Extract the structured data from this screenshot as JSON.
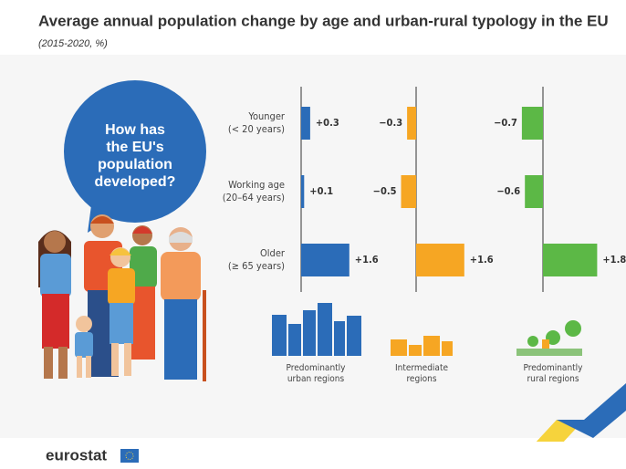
{
  "chart_data": {
    "type": "bar",
    "orientation": "horizontal",
    "title": "Average annual population change by age and urban-rural typology in the EU",
    "subtitle": "(2015-2020, %)",
    "annotation": [
      "How has",
      "the EU's",
      "population",
      "developed?"
    ],
    "logo": "eurostat",
    "categories": [
      [
        "Younger",
        "(< 20 years)"
      ],
      [
        "Working age",
        "(20–64 years)"
      ],
      [
        "Older",
        "(≥ 65 years)"
      ]
    ],
    "series": [
      {
        "name": [
          "Predominantly",
          "urban regions"
        ],
        "color": "#2b6cb8",
        "values": [
          0.3,
          0.1,
          1.6
        ],
        "value_labels": [
          "+0.3",
          "+0.1",
          "+1.6"
        ]
      },
      {
        "name": [
          "Intermediate",
          "regions"
        ],
        "color": "#f6a623",
        "values": [
          -0.3,
          -0.5,
          1.6
        ],
        "value_labels": [
          "−0.3",
          "−0.5",
          "+1.6"
        ]
      },
      {
        "name": [
          "Predominantly",
          "rural regions"
        ],
        "color": "#5cb846",
        "values": [
          -0.7,
          -0.6,
          1.8
        ],
        "value_labels": [
          "−0.7",
          "−0.6",
          "+1.8"
        ]
      }
    ]
  }
}
